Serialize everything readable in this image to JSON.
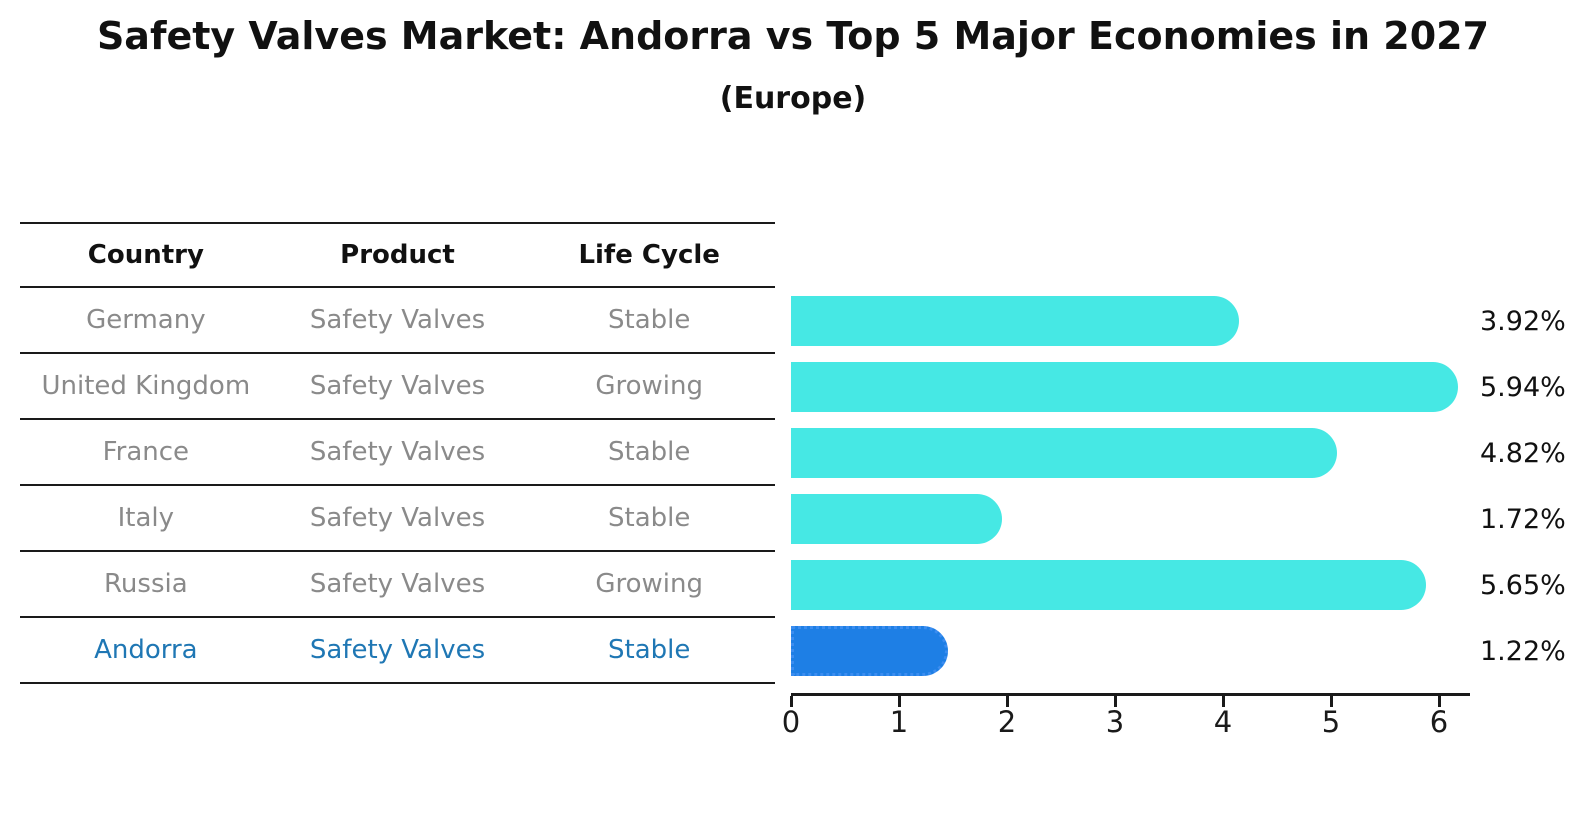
{
  "title": "Safety Valves Market: Andorra vs Top 5 Major Economies in 2027",
  "subtitle": "(Europe)",
  "table": {
    "headers": [
      "Country",
      "Product",
      "Life Cycle"
    ],
    "rows": [
      {
        "country": "Germany",
        "product": "Safety Valves",
        "life_cycle": "Stable"
      },
      {
        "country": "United Kingdom",
        "product": "Safety Valves",
        "life_cycle": "Growing"
      },
      {
        "country": "France",
        "product": "Safety Valves",
        "life_cycle": "Stable"
      },
      {
        "country": "Italy",
        "product": "Safety Valves",
        "life_cycle": "Stable"
      },
      {
        "country": "Russia",
        "product": "Safety Valves",
        "life_cycle": "Growing"
      },
      {
        "country": "Andorra",
        "product": "Safety Valves",
        "life_cycle": "Stable"
      }
    ],
    "highlight_row": "Andorra"
  },
  "chart_data": {
    "type": "bar",
    "orientation": "horizontal",
    "title": "Safety Valves Market: Andorra vs Top 5 Major Economies in 2027",
    "subtitle": "(Europe)",
    "categories": [
      "Germany",
      "United Kingdom",
      "France",
      "Italy",
      "Russia",
      "Andorra"
    ],
    "values": [
      3.92,
      5.94,
      4.82,
      1.72,
      5.65,
      1.22
    ],
    "value_labels": [
      "3.92%",
      "5.94%",
      "4.82%",
      "1.72%",
      "5.65%",
      "1.22%"
    ],
    "x_tick_labels": [
      "0",
      "1",
      "2",
      "3",
      "4",
      "5",
      "6"
    ],
    "xlim": [
      0,
      6.3
    ],
    "grid": false,
    "legend": false,
    "bar_color": "#46e8e4",
    "highlight_index": 5,
    "highlight_bar_color": "#1e7fe5",
    "highlight_bar_border_color": "#3b8df0",
    "highlight_text_color": "#1f77b4"
  },
  "colors": {
    "text": "#111111",
    "muted_text": "#8a8a8a",
    "line": "#1a1a1a",
    "background": "#ffffff"
  }
}
